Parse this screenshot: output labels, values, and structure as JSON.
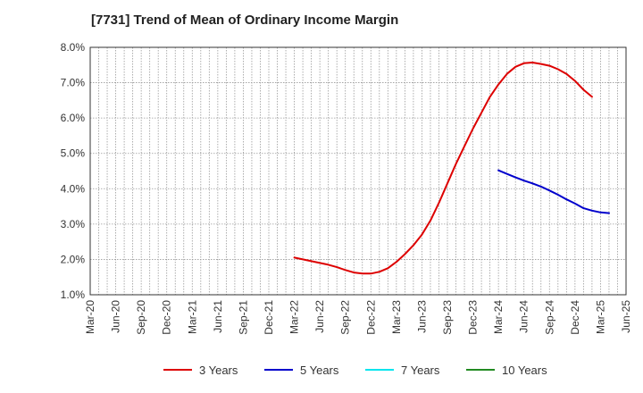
{
  "chart_data": {
    "type": "line",
    "title": "[7731]  Trend of Mean of Ordinary Income Margin",
    "xlabel": "",
    "ylabel": "",
    "x_ticks": [
      "Mar-20",
      "Jun-20",
      "Sep-20",
      "Dec-20",
      "Mar-21",
      "Jun-21",
      "Sep-21",
      "Dec-21",
      "Mar-22",
      "Jun-22",
      "Sep-22",
      "Dec-22",
      "Mar-23",
      "Jun-23",
      "Sep-23",
      "Dec-23",
      "Mar-24",
      "Jun-24",
      "Sep-24",
      "Dec-24",
      "Mar-25",
      "Jun-25"
    ],
    "y_ticks": [
      "1.0%",
      "2.0%",
      "3.0%",
      "4.0%",
      "5.0%",
      "6.0%",
      "7.0%",
      "8.0%"
    ],
    "ylim": [
      1.0,
      8.0
    ],
    "y_unit": "%",
    "grid": true,
    "legend_position": "bottom",
    "series": [
      {
        "name": "3 Years",
        "color": "#dd0000",
        "points": [
          [
            "Mar-22",
            2.05
          ],
          [
            "Apr-22",
            2.0
          ],
          [
            "May-22",
            1.95
          ],
          [
            "Jun-22",
            1.9
          ],
          [
            "Jul-22",
            1.85
          ],
          [
            "Aug-22",
            1.78
          ],
          [
            "Sep-22",
            1.7
          ],
          [
            "Oct-22",
            1.63
          ],
          [
            "Nov-22",
            1.6
          ],
          [
            "Dec-22",
            1.6
          ],
          [
            "Jan-23",
            1.65
          ],
          [
            "Feb-23",
            1.75
          ],
          [
            "Mar-23",
            1.93
          ],
          [
            "Apr-23",
            2.15
          ],
          [
            "May-23",
            2.4
          ],
          [
            "Jun-23",
            2.7
          ],
          [
            "Jul-23",
            3.1
          ],
          [
            "Aug-23",
            3.6
          ],
          [
            "Sep-23",
            4.15
          ],
          [
            "Oct-23",
            4.7
          ],
          [
            "Nov-23",
            5.2
          ],
          [
            "Dec-23",
            5.7
          ],
          [
            "Jan-24",
            6.15
          ],
          [
            "Feb-24",
            6.6
          ],
          [
            "Mar-24",
            6.95
          ],
          [
            "Apr-24",
            7.25
          ],
          [
            "May-24",
            7.45
          ],
          [
            "Jun-24",
            7.55
          ],
          [
            "Jul-24",
            7.57
          ],
          [
            "Aug-24",
            7.53
          ],
          [
            "Sep-24",
            7.48
          ],
          [
            "Oct-24",
            7.38
          ],
          [
            "Nov-24",
            7.25
          ],
          [
            "Dec-24",
            7.05
          ],
          [
            "Jan-25",
            6.8
          ],
          [
            "Feb-25",
            6.6
          ]
        ]
      },
      {
        "name": "5 Years",
        "color": "#0000cc",
        "points": [
          [
            "Mar-24",
            4.52
          ],
          [
            "Apr-24",
            4.42
          ],
          [
            "May-24",
            4.32
          ],
          [
            "Jun-24",
            4.23
          ],
          [
            "Jul-24",
            4.15
          ],
          [
            "Aug-24",
            4.06
          ],
          [
            "Sep-24",
            3.95
          ],
          [
            "Oct-24",
            3.83
          ],
          [
            "Nov-24",
            3.7
          ],
          [
            "Dec-24",
            3.58
          ],
          [
            "Jan-25",
            3.45
          ],
          [
            "Feb-25",
            3.38
          ],
          [
            "Mar-25",
            3.33
          ],
          [
            "Apr-25",
            3.31
          ]
        ]
      },
      {
        "name": "7 Years",
        "color": "#00e5ee",
        "points": []
      },
      {
        "name": "10 Years",
        "color": "#228b22",
        "points": []
      }
    ]
  }
}
